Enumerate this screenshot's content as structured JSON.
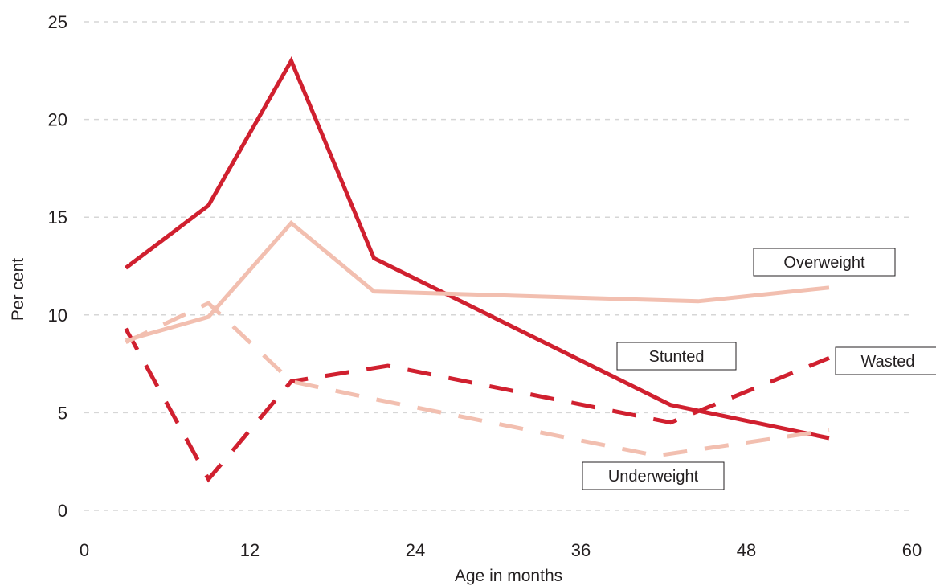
{
  "chart_data": {
    "type": "line",
    "xlabel": "Age in months",
    "ylabel": "Per cent",
    "xlim": [
      0,
      60
    ],
    "ylim": [
      0,
      25
    ],
    "x_ticks": [
      "0",
      "12",
      "24",
      "36",
      "48",
      "60"
    ],
    "y_ticks": [
      "0",
      "5",
      "10",
      "15",
      "20",
      "25"
    ],
    "grid": "horizontal dashed",
    "legend": "inline labels",
    "x": [
      3,
      9,
      15,
      21,
      27,
      33,
      39,
      45,
      54
    ],
    "series": [
      {
        "name": "Stunted",
        "color": "#d0202f",
        "style": "solid",
        "points": [
          [
            3,
            12.4
          ],
          [
            9,
            15.6
          ],
          [
            15,
            23.0
          ],
          [
            21,
            12.9
          ],
          [
            42.5,
            5.4
          ],
          [
            54,
            3.7
          ]
        ]
      },
      {
        "name": "Overweight",
        "color": "#f2bfb0",
        "style": "solid",
        "points": [
          [
            3,
            8.7
          ],
          [
            9,
            9.9
          ],
          [
            15,
            14.7
          ],
          [
            21,
            11.2
          ],
          [
            44.5,
            10.7
          ],
          [
            54,
            11.4
          ]
        ]
      },
      {
        "name": "Wasted",
        "color": "#d0202f",
        "style": "dashed",
        "points": [
          [
            3,
            9.3
          ],
          [
            9,
            1.6
          ],
          [
            15,
            6.6
          ],
          [
            22,
            7.4
          ],
          [
            42.5,
            4.5
          ],
          [
            54,
            7.8
          ]
        ]
      },
      {
        "name": "Underweight",
        "color": "#f2bfb0",
        "style": "dashed",
        "points": [
          [
            3,
            8.6
          ],
          [
            9,
            10.6
          ],
          [
            15,
            6.6
          ],
          [
            21,
            5.7
          ],
          [
            41.5,
            2.8
          ],
          [
            54,
            4.1
          ]
        ]
      }
    ]
  }
}
